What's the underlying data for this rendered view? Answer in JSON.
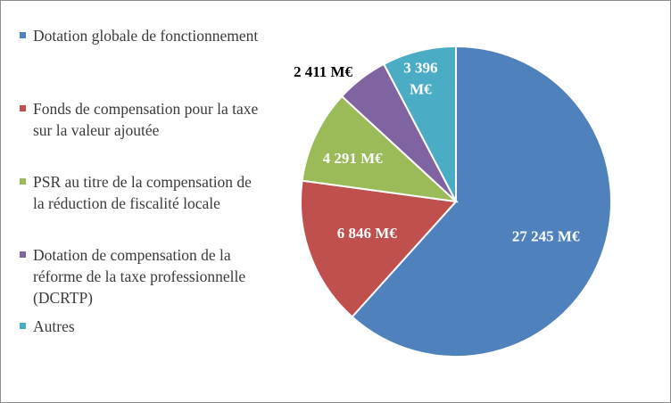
{
  "chart_data": {
    "type": "pie",
    "title": "",
    "categories": [
      "Dotation globale de fonctionnement",
      "Fonds de compensation pour la taxe sur la valeur ajoutée",
      "PSR au titre de la compensation de la réduction de fiscalité locale",
      "Dotation de compensation de la réforme de la taxe professionnelle  (DCRTP)",
      "Autres"
    ],
    "values": [
      27245,
      6846,
      4291,
      2411,
      3396
    ],
    "unit": "M€",
    "data_labels": [
      "27 245 M€",
      "6 846 M€",
      "4 291 M€",
      "2 411 M€",
      "3 396 M€"
    ],
    "legend_placement": "left",
    "colors": [
      "#4f81bd",
      "#c0504d",
      "#9bbb59",
      "#8064a2",
      "#4bacc6"
    ],
    "label_colors": [
      "#ffffff",
      "#ffffff",
      "#ffffff",
      "#000000",
      "#ffffff"
    ]
  }
}
